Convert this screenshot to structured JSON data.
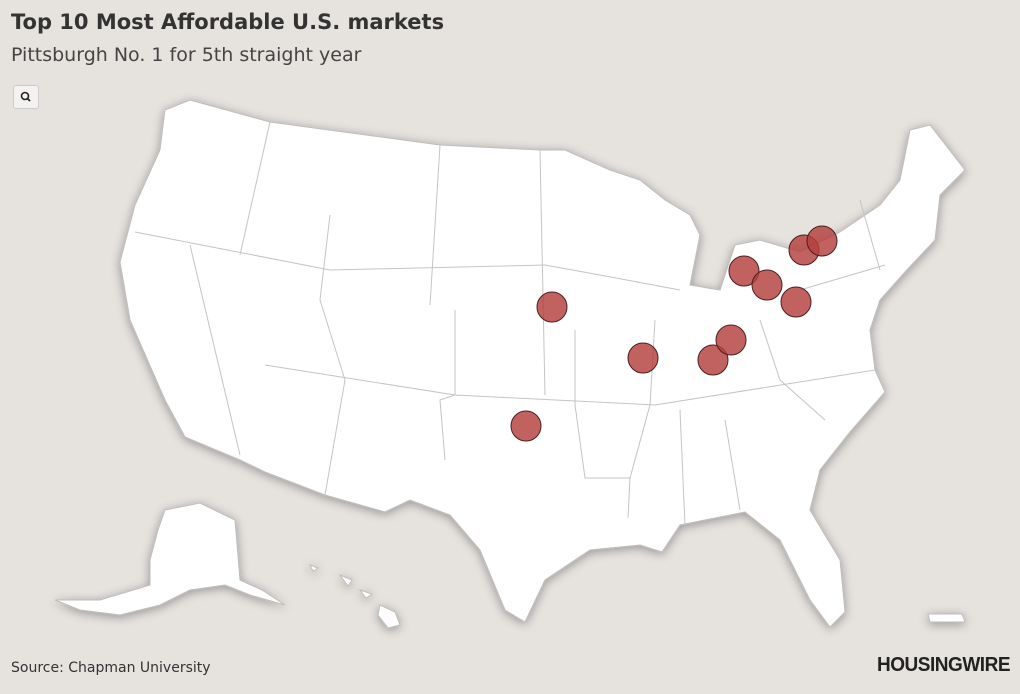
{
  "header": {
    "title": "Top 10 Most Affordable U.S. markets",
    "subtitle": "Pittsburgh No. 1 for 5th straight year"
  },
  "footer": {
    "source": "Source: Chapman University",
    "logo": "HOUSINGWIRE"
  }
}
